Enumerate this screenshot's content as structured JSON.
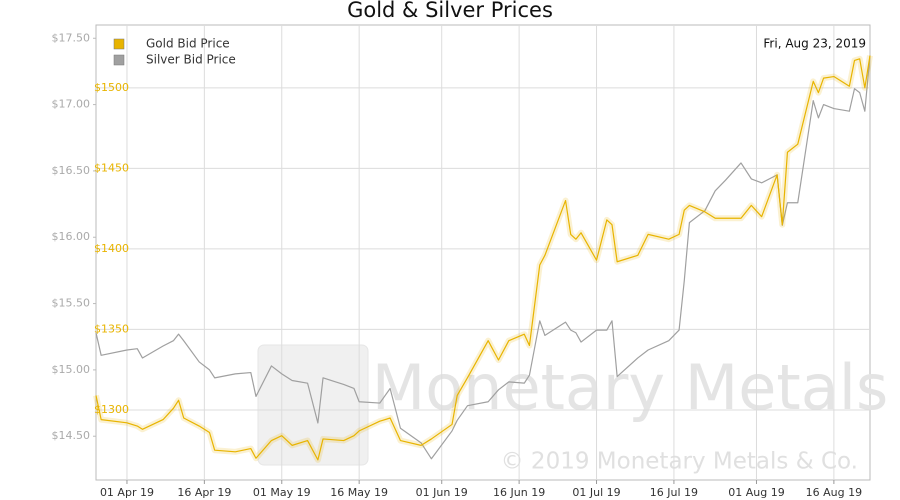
{
  "chart_data": {
    "type": "line",
    "title": "Gold & Silver Prices",
    "annotation": "Fri, Aug 23, 2019",
    "watermark": "Monetary Metals",
    "copyright": "© 2019 Monetary Metals & Co.",
    "legend": "upper left",
    "grid": true,
    "x": [
      "2019-03-26",
      "2019-03-27",
      "2019-04-01",
      "2019-04-03",
      "2019-04-04",
      "2019-04-08",
      "2019-04-10",
      "2019-04-11",
      "2019-04-12",
      "2019-04-15",
      "2019-04-17",
      "2019-04-18",
      "2019-04-22",
      "2019-04-25",
      "2019-04-26",
      "2019-04-29",
      "2019-05-01",
      "2019-05-03",
      "2019-05-06",
      "2019-05-08",
      "2019-05-09",
      "2019-05-13",
      "2019-05-15",
      "2019-05-16",
      "2019-05-20",
      "2019-05-22",
      "2019-05-24",
      "2019-05-28",
      "2019-05-30",
      "2019-06-03",
      "2019-06-04",
      "2019-06-06",
      "2019-06-10",
      "2019-06-12",
      "2019-06-14",
      "2019-06-17",
      "2019-06-18",
      "2019-06-20",
      "2019-06-21",
      "2019-06-25",
      "2019-06-26",
      "2019-06-27",
      "2019-06-28",
      "2019-07-01",
      "2019-07-03",
      "2019-07-04",
      "2019-07-05",
      "2019-07-09",
      "2019-07-11",
      "2019-07-15",
      "2019-07-17",
      "2019-07-18",
      "2019-07-19",
      "2019-07-22",
      "2019-07-24",
      "2019-07-26",
      "2019-07-29",
      "2019-07-31",
      "2019-08-02",
      "2019-08-05",
      "2019-08-06",
      "2019-08-07",
      "2019-08-09",
      "2019-08-12",
      "2019-08-13",
      "2019-08-14",
      "2019-08-16",
      "2019-08-19",
      "2019-08-20",
      "2019-08-21",
      "2019-08-22",
      "2019-08-23"
    ],
    "series": [
      {
        "name": "Gold Bid Price",
        "color": "#e8b400",
        "axis": "y2",
        "values": [
          1309,
          1294,
          1292,
          1290,
          1288,
          1294,
          1301,
          1306,
          1295,
          1290,
          1286,
          1275,
          1274,
          1276,
          1270,
          1281,
          1284,
          1278,
          1281,
          1269,
          1282,
          1281,
          1284,
          1287,
          1293,
          1295,
          1281,
          1278,
          1282,
          1291,
          1309,
          1320,
          1343,
          1331,
          1343,
          1347,
          1340,
          1390,
          1396,
          1430,
          1409,
          1406,
          1410,
          1393,
          1418,
          1415,
          1392,
          1396,
          1409,
          1406,
          1409,
          1424,
          1427,
          1423,
          1419,
          1419,
          1419,
          1427,
          1420,
          1446,
          1415,
          1460,
          1465,
          1504,
          1497,
          1506,
          1507,
          1501,
          1517,
          1518,
          1500,
          1520
        ]
      },
      {
        "name": "Silver Bid Price",
        "color": "#a0a0a0",
        "values": [
          15.28,
          15.11,
          15.15,
          15.16,
          15.09,
          15.18,
          15.22,
          15.27,
          15.22,
          15.06,
          15.0,
          14.94,
          14.97,
          14.98,
          14.8,
          15.03,
          14.97,
          14.92,
          14.9,
          14.6,
          14.94,
          14.89,
          14.86,
          14.76,
          14.75,
          14.86,
          14.56,
          14.45,
          14.33,
          14.54,
          14.62,
          14.73,
          14.76,
          14.85,
          14.91,
          14.9,
          14.96,
          15.37,
          15.26,
          15.36,
          15.3,
          15.28,
          15.21,
          15.3,
          15.3,
          15.37,
          14.95,
          15.09,
          15.15,
          15.22,
          15.3,
          15.67,
          16.11,
          16.2,
          16.35,
          16.43,
          16.56,
          16.44,
          16.41,
          16.47,
          16.09,
          16.26,
          16.26,
          17.03,
          16.9,
          17.0,
          16.97,
          16.95,
          17.12,
          17.09,
          16.95,
          17.37
        ]
      }
    ],
    "xlim": [
      "2019-03-26",
      "2019-08-23"
    ],
    "xticks": [
      {
        "value": "2019-04-01",
        "label": "01 Apr 19"
      },
      {
        "value": "2019-04-16",
        "label": "16 Apr 19"
      },
      {
        "value": "2019-05-01",
        "label": "01 May 19"
      },
      {
        "value": "2019-05-16",
        "label": "16 May 19"
      },
      {
        "value": "2019-06-01",
        "label": "01 Jun 19"
      },
      {
        "value": "2019-06-16",
        "label": "16 Jun 19"
      },
      {
        "value": "2019-07-01",
        "label": "01 Jul 19"
      },
      {
        "value": "2019-07-16",
        "label": "16 Jul 19"
      },
      {
        "value": "2019-08-01",
        "label": "01 Aug 19"
      },
      {
        "value": "2019-08-16",
        "label": "16 Aug 19"
      }
    ],
    "ylim": [
      14.17,
      17.6
    ],
    "yticks": [
      {
        "value": 14.5,
        "label": "$14.50"
      },
      {
        "value": 15.0,
        "label": "$15.00"
      },
      {
        "value": 15.5,
        "label": "$15.50"
      },
      {
        "value": 16.0,
        "label": "$16.00"
      },
      {
        "value": 16.5,
        "label": "$16.50"
      },
      {
        "value": 17.0,
        "label": "$17.00"
      },
      {
        "value": 17.5,
        "label": "$17.50"
      }
    ],
    "y2lim": [
      1256.5,
      1539
    ],
    "y2ticks": [
      {
        "value": 1300,
        "label": "$1300"
      },
      {
        "value": 1350,
        "label": "$1350"
      },
      {
        "value": 1400,
        "label": "$1400"
      },
      {
        "value": 1450,
        "label": "$1450"
      },
      {
        "value": 1500,
        "label": "$1500"
      }
    ]
  }
}
